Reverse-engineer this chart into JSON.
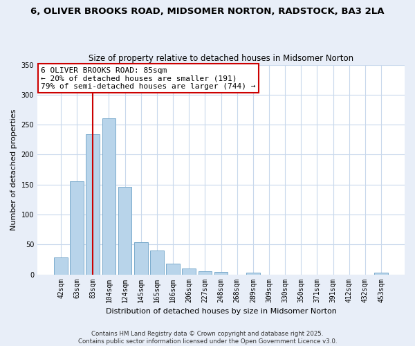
{
  "title": "6, OLIVER BROOKS ROAD, MIDSOMER NORTON, RADSTOCK, BA3 2LA",
  "subtitle": "Size of property relative to detached houses in Midsomer Norton",
  "xlabel": "Distribution of detached houses by size in Midsomer Norton",
  "ylabel": "Number of detached properties",
  "bar_labels": [
    "42sqm",
    "63sqm",
    "83sqm",
    "104sqm",
    "124sqm",
    "145sqm",
    "165sqm",
    "186sqm",
    "206sqm",
    "227sqm",
    "248sqm",
    "268sqm",
    "289sqm",
    "309sqm",
    "330sqm",
    "350sqm",
    "371sqm",
    "391sqm",
    "412sqm",
    "432sqm",
    "453sqm"
  ],
  "bar_values": [
    28,
    155,
    234,
    261,
    146,
    54,
    40,
    18,
    10,
    5,
    4,
    0,
    3,
    0,
    0,
    0,
    0,
    0,
    0,
    0,
    3
  ],
  "bar_color": "#b8d4ea",
  "bar_edge_color": "#7aabcc",
  "vline_x_index": 2,
  "vline_color": "#cc0000",
  "ylim": [
    0,
    350
  ],
  "yticks": [
    0,
    50,
    100,
    150,
    200,
    250,
    300,
    350
  ],
  "annotation_title": "6 OLIVER BROOKS ROAD: 85sqm",
  "annotation_line1": "← 20% of detached houses are smaller (191)",
  "annotation_line2": "79% of semi-detached houses are larger (744) →",
  "footer1": "Contains HM Land Registry data © Crown copyright and database right 2025.",
  "footer2": "Contains public sector information licensed under the Open Government Licence v3.0.",
  "bg_color": "#e8eef8",
  "plot_bg_color": "#ffffff",
  "grid_color": "#c8d8ec"
}
